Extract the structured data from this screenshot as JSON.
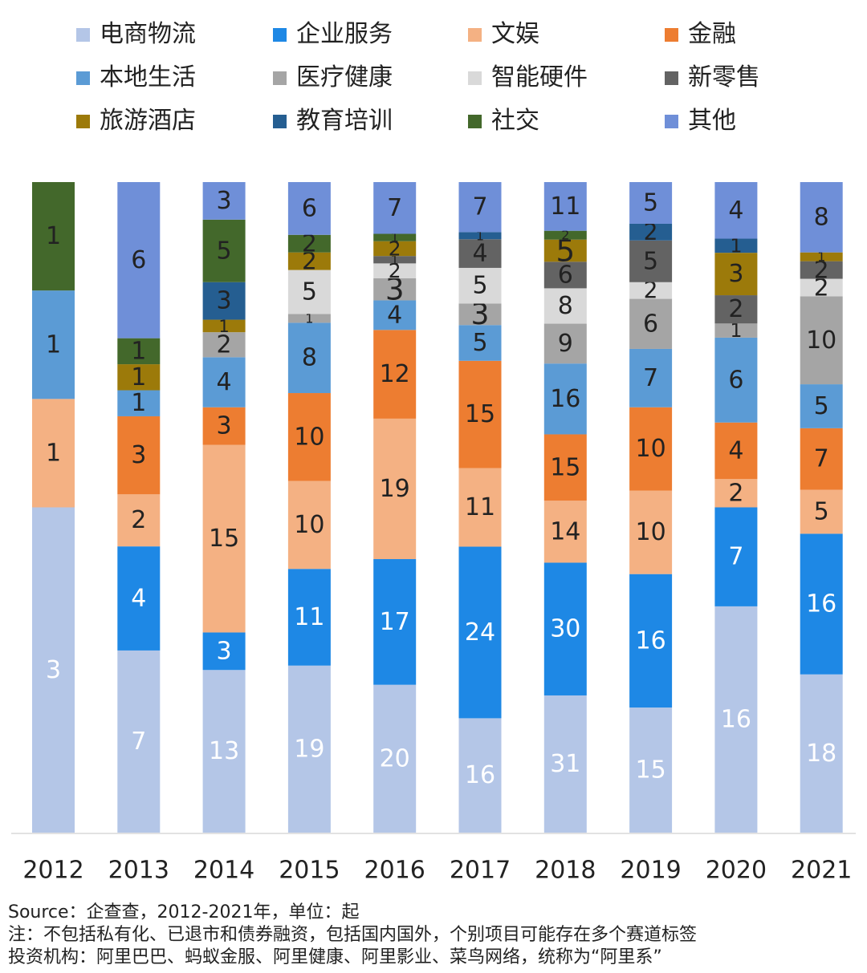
{
  "chart_data": {
    "type": "bar",
    "stacked": true,
    "percent_of_year_total": true,
    "categories": [
      "2012",
      "2013",
      "2014",
      "2015",
      "2016",
      "2017",
      "2018",
      "2019",
      "2020",
      "2021"
    ],
    "series": [
      {
        "name": "电商物流",
        "color": "#b4c6e7",
        "label_color": "#ffffff",
        "values": [
          3,
          7,
          13,
          19,
          20,
          16,
          31,
          15,
          16,
          18
        ]
      },
      {
        "name": "企业服务",
        "color": "#1e88e5",
        "label_color": "#ffffff",
        "values": [
          0,
          4,
          3,
          11,
          17,
          24,
          30,
          16,
          7,
          16
        ]
      },
      {
        "name": "文娱",
        "color": "#f4b183",
        "label_color": "#222222",
        "values": [
          1,
          2,
          15,
          10,
          19,
          11,
          14,
          10,
          2,
          5
        ]
      },
      {
        "name": "金融",
        "color": "#ed7d31",
        "label_color": "#222222",
        "values": [
          0,
          3,
          3,
          10,
          12,
          15,
          15,
          10,
          4,
          7
        ]
      },
      {
        "name": "本地生活",
        "color": "#5b9bd5",
        "label_color": "#222222",
        "values": [
          1,
          1,
          4,
          8,
          4,
          5,
          16,
          7,
          6,
          5
        ]
      },
      {
        "name": "医疗健康",
        "color": "#a5a5a5",
        "label_color": "#222222",
        "values": [
          0,
          0,
          2,
          1,
          3,
          3,
          9,
          6,
          1,
          10
        ]
      },
      {
        "name": "智能硬件",
        "color": "#d9d9d9",
        "label_color": "#222222",
        "values": [
          0,
          0,
          0,
          5,
          2,
          5,
          8,
          2,
          0,
          2
        ]
      },
      {
        "name": "新零售",
        "color": "#636363",
        "label_color": "#222222",
        "values": [
          0,
          0,
          0,
          0,
          1,
          4,
          6,
          5,
          2,
          2
        ]
      },
      {
        "name": "旅游酒店",
        "color": "#9c7a0a",
        "label_color": "#222222",
        "values": [
          0,
          1,
          1,
          2,
          2,
          0,
          5,
          0,
          3,
          1
        ]
      },
      {
        "name": "教育培训",
        "color": "#255e91",
        "label_color": "#222222",
        "values": [
          0,
          0,
          3,
          0,
          0,
          1,
          0,
          2,
          1,
          0
        ]
      },
      {
        "name": "社交",
        "color": "#43682b",
        "label_color": "#222222",
        "values": [
          1,
          1,
          5,
          2,
          1,
          0,
          2,
          0,
          0,
          0
        ]
      },
      {
        "name": "其他",
        "color": "#6f8fd8",
        "label_color": "#222222",
        "values": [
          0,
          6,
          3,
          6,
          7,
          7,
          11,
          5,
          4,
          8
        ]
      }
    ],
    "legend_position": "top",
    "grid": false
  },
  "footer": {
    "source": "Source：企查查，2012-2021年，单位：起",
    "note": "注：不包括私有化、已退市和债券融资，包括国内国外，个别项目可能存在多个赛道标签",
    "investors": "投资机构：阿里巴巴、蚂蚁金服、阿里健康、阿里影业、菜鸟网络，统称为“阿里系”"
  }
}
